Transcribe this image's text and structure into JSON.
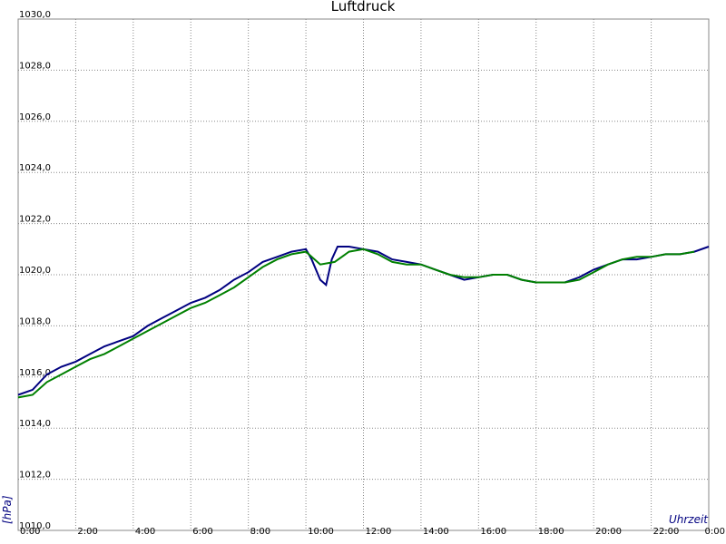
{
  "chart_data": {
    "type": "line",
    "title": "Luftdruck",
    "xlabel": "Uhrzeit",
    "ylabel": "[hPa]",
    "xlim": [
      0,
      24
    ],
    "ylim": [
      1010,
      1030
    ],
    "grid": true,
    "xticks": [
      {
        "value": 0,
        "label": "0:00"
      },
      {
        "value": 2,
        "label": "2:00"
      },
      {
        "value": 4,
        "label": "4:00"
      },
      {
        "value": 6,
        "label": "6:00"
      },
      {
        "value": 8,
        "label": "8:00"
      },
      {
        "value": 10,
        "label": "10:00"
      },
      {
        "value": 12,
        "label": "12:00"
      },
      {
        "value": 14,
        "label": "14:00"
      },
      {
        "value": 16,
        "label": "16:00"
      },
      {
        "value": 18,
        "label": "18:00"
      },
      {
        "value": 20,
        "label": "20:00"
      },
      {
        "value": 22,
        "label": "22:00"
      },
      {
        "value": 24,
        "label": "0:00"
      }
    ],
    "yticks": [
      {
        "value": 1010,
        "label": "1010,0"
      },
      {
        "value": 1012,
        "label": "1012,0"
      },
      {
        "value": 1014,
        "label": "1014,0"
      },
      {
        "value": 1016,
        "label": "1016,0"
      },
      {
        "value": 1018,
        "label": "1018,0"
      },
      {
        "value": 1020,
        "label": "1020,0"
      },
      {
        "value": 1022,
        "label": "1022,0"
      },
      {
        "value": 1024,
        "label": "1024,0"
      },
      {
        "value": 1026,
        "label": "1026,0"
      },
      {
        "value": 1028,
        "label": "1028,0"
      },
      {
        "value": 1030,
        "label": "1030,0"
      }
    ],
    "series": [
      {
        "color": "#000080",
        "x": [
          0,
          0.5,
          1,
          1.5,
          2,
          2.5,
          3,
          3.5,
          4,
          4.5,
          5,
          5.5,
          6,
          6.5,
          7,
          7.5,
          8,
          8.5,
          9,
          9.5,
          10,
          10.2,
          10.5,
          10.7,
          10.9,
          11.1,
          11.5,
          12,
          12.5,
          13,
          13.5,
          14,
          14.5,
          15,
          15.5,
          16,
          16.5,
          17,
          17.5,
          18,
          18.5,
          19,
          19.5,
          20,
          20.5,
          21,
          21.5,
          22,
          22.5,
          23,
          23.5,
          24
        ],
        "values": [
          1015.3,
          1015.5,
          1016.1,
          1016.4,
          1016.6,
          1016.9,
          1017.2,
          1017.4,
          1017.6,
          1018.0,
          1018.3,
          1018.6,
          1018.9,
          1019.1,
          1019.4,
          1019.8,
          1020.1,
          1020.5,
          1020.7,
          1020.9,
          1021.0,
          1020.6,
          1019.8,
          1019.6,
          1020.6,
          1021.1,
          1021.1,
          1021.0,
          1020.9,
          1020.6,
          1020.5,
          1020.4,
          1020.2,
          1020.0,
          1019.8,
          1019.9,
          1020.0,
          1020.0,
          1019.8,
          1019.7,
          1019.7,
          1019.7,
          1019.9,
          1020.2,
          1020.4,
          1020.6,
          1020.6,
          1020.7,
          1020.8,
          1020.8,
          1020.9,
          1021.1
        ]
      },
      {
        "color": "#008000",
        "x": [
          0,
          0.5,
          1,
          1.5,
          2,
          2.5,
          3,
          3.5,
          4,
          4.5,
          5,
          5.5,
          6,
          6.5,
          7,
          7.5,
          8,
          8.5,
          9,
          9.5,
          10,
          10.5,
          11,
          11.5,
          12,
          12.5,
          13,
          13.5,
          14,
          14.5,
          15,
          15.5,
          16,
          16.5,
          17,
          17.5,
          18,
          18.5,
          19,
          19.5,
          20,
          20.5,
          21,
          21.5,
          22,
          22.5,
          23,
          23.5
        ],
        "values": [
          1015.2,
          1015.3,
          1015.8,
          1016.1,
          1016.4,
          1016.7,
          1016.9,
          1017.2,
          1017.5,
          1017.8,
          1018.1,
          1018.4,
          1018.7,
          1018.9,
          1019.2,
          1019.5,
          1019.9,
          1020.3,
          1020.6,
          1020.8,
          1020.9,
          1020.4,
          1020.5,
          1020.9,
          1021.0,
          1020.8,
          1020.5,
          1020.4,
          1020.4,
          1020.2,
          1020.0,
          1019.9,
          1019.9,
          1020.0,
          1020.0,
          1019.8,
          1019.7,
          1019.7,
          1019.7,
          1019.8,
          1020.1,
          1020.4,
          1020.6,
          1020.7,
          1020.7,
          1020.8,
          1020.8,
          1020.9
        ]
      }
    ]
  }
}
